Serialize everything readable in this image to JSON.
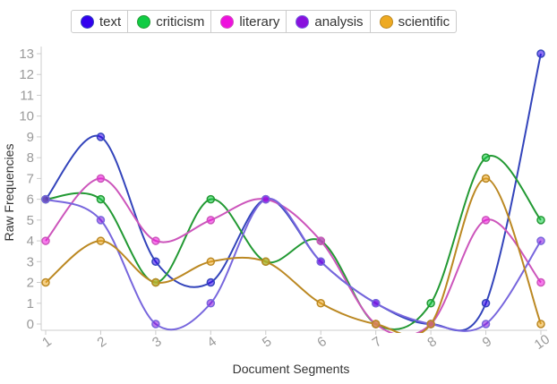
{
  "chart_data": {
    "type": "line",
    "title": "",
    "xlabel": "Document Segments",
    "ylabel": "Raw Frequencies",
    "categories": [
      "1",
      "2",
      "3",
      "4",
      "5",
      "6",
      "7",
      "8",
      "9",
      "10"
    ],
    "ylim": [
      0,
      13
    ],
    "yticks": [
      0,
      1,
      2,
      3,
      4,
      5,
      6,
      7,
      8,
      9,
      10,
      11,
      12,
      13
    ],
    "legend_position": "top",
    "grid": false,
    "series": [
      {
        "name": "text",
        "color": "#3344bb",
        "legend_color": "#3300ee",
        "values": [
          6,
          9,
          3,
          2,
          6,
          3,
          1,
          0,
          1,
          13
        ]
      },
      {
        "name": "criticism",
        "color": "#229933",
        "legend_color": "#11cc44",
        "values": [
          6,
          6,
          2,
          6,
          3,
          4,
          0,
          1,
          8,
          5
        ]
      },
      {
        "name": "literary",
        "color": "#cc55bb",
        "legend_color": "#ee11dd",
        "values": [
          4,
          7,
          4,
          5,
          6,
          4,
          0,
          0,
          5,
          2
        ]
      },
      {
        "name": "analysis",
        "color": "#7766dd",
        "legend_color": "#8811dd",
        "values": [
          6,
          5,
          0,
          1,
          6,
          3,
          1,
          0,
          0,
          4
        ]
      },
      {
        "name": "scientific",
        "color": "#bb8822",
        "legend_color": "#eeaa22",
        "values": [
          2,
          4,
          2,
          3,
          3,
          1,
          0,
          0,
          7,
          0
        ]
      }
    ]
  }
}
